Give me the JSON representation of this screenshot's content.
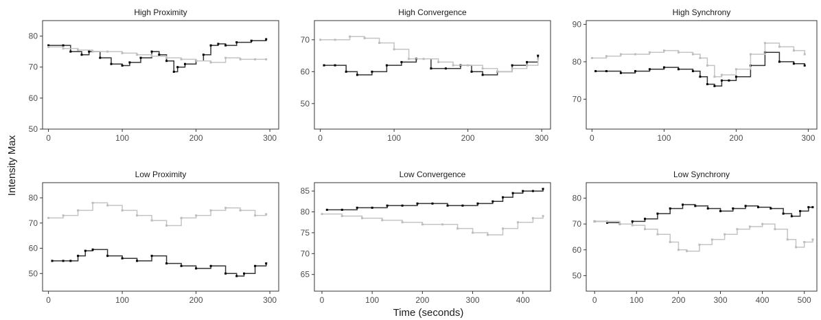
{
  "figure": {
    "y_title": "Intensity Max",
    "x_title": "Time (seconds)"
  },
  "colors": {
    "series_dark": "#000000",
    "series_light": "#bdbdbd",
    "line_dark": "#333333",
    "line_light": "#c4c4c4"
  },
  "chart_data": [
    {
      "type": "line",
      "title": "High Proximity",
      "xlim": [
        -8,
        312
      ],
      "ylim": [
        50,
        85
      ],
      "xticks": [
        0,
        100,
        200,
        300
      ],
      "yticks": [
        50,
        60,
        70,
        80
      ],
      "series": [
        {
          "color": "dark",
          "x": [
            0,
            20,
            30,
            45,
            55,
            70,
            85,
            100,
            110,
            125,
            140,
            150,
            160,
            170,
            175,
            185,
            200,
            210,
            220,
            230,
            240,
            255,
            275,
            295
          ],
          "y": [
            77,
            77,
            75,
            74,
            75,
            73,
            71,
            70.5,
            71.5,
            73,
            75,
            74,
            72,
            68.5,
            70,
            71,
            72,
            74,
            77,
            77.5,
            77,
            78,
            78.5,
            79
          ]
        },
        {
          "color": "light",
          "x": [
            0,
            20,
            40,
            60,
            80,
            100,
            120,
            140,
            160,
            180,
            200,
            220,
            240,
            260,
            280,
            295
          ],
          "y": [
            76.5,
            76,
            75.5,
            75,
            75,
            74.5,
            74,
            73.5,
            73,
            72.5,
            72,
            71.5,
            73,
            72.5,
            72.5,
            72.5
          ]
        }
      ]
    },
    {
      "type": "line",
      "title": "High Convergence",
      "xlim": [
        -8,
        312
      ],
      "ylim": [
        42,
        76
      ],
      "xticks": [
        0,
        100,
        200,
        300
      ],
      "yticks": [
        50,
        60,
        70
      ],
      "series": [
        {
          "color": "dark",
          "x": [
            5,
            20,
            35,
            50,
            70,
            90,
            110,
            130,
            150,
            170,
            190,
            205,
            220,
            240,
            260,
            280,
            295
          ],
          "y": [
            62,
            62,
            60,
            59,
            60,
            62,
            63,
            64,
            61,
            61,
            62,
            60,
            59,
            60,
            62,
            63,
            65
          ]
        },
        {
          "color": "light",
          "x": [
            0,
            20,
            40,
            60,
            80,
            100,
            120,
            140,
            160,
            180,
            200,
            220,
            240,
            260,
            280,
            295
          ],
          "y": [
            70,
            70,
            71,
            70.5,
            69,
            67,
            64,
            64,
            63,
            62,
            62,
            61,
            60,
            61,
            62,
            64
          ]
        }
      ]
    },
    {
      "type": "line",
      "title": "High Synchrony",
      "xlim": [
        -8,
        312
      ],
      "ylim": [
        62,
        91
      ],
      "xticks": [
        0,
        100,
        200,
        300
      ],
      "yticks": [
        70,
        80,
        90
      ],
      "series": [
        {
          "color": "dark",
          "x": [
            5,
            20,
            40,
            60,
            80,
            100,
            120,
            140,
            150,
            160,
            170,
            180,
            190,
            200,
            220,
            240,
            260,
            280,
            295
          ],
          "y": [
            77.5,
            77.5,
            77,
            77.5,
            78,
            78.5,
            78,
            77.5,
            76,
            74,
            73.5,
            75,
            75,
            76,
            79,
            82.5,
            80,
            79.5,
            79
          ]
        },
        {
          "color": "light",
          "x": [
            0,
            20,
            40,
            60,
            80,
            100,
            120,
            140,
            150,
            160,
            170,
            180,
            200,
            220,
            240,
            260,
            280,
            295
          ],
          "y": [
            81,
            81.5,
            82,
            82,
            82.5,
            83,
            82.5,
            82,
            81,
            79,
            76,
            76.5,
            78,
            82,
            85,
            84,
            83,
            82
          ]
        }
      ]
    },
    {
      "type": "line",
      "title": "Low Proximity",
      "xlim": [
        -8,
        312
      ],
      "ylim": [
        43,
        86
      ],
      "xticks": [
        0,
        100,
        200,
        300
      ],
      "yticks": [
        50,
        60,
        70,
        80
      ],
      "series": [
        {
          "color": "dark",
          "x": [
            5,
            20,
            30,
            40,
            50,
            60,
            80,
            100,
            120,
            140,
            160,
            180,
            200,
            220,
            240,
            255,
            265,
            280,
            295
          ],
          "y": [
            55,
            55,
            55,
            57,
            59,
            59.5,
            57,
            56,
            55,
            57,
            54,
            53,
            52,
            53,
            50,
            49,
            50,
            53,
            54
          ]
        },
        {
          "color": "light",
          "x": [
            0,
            20,
            40,
            60,
            80,
            100,
            120,
            140,
            160,
            180,
            200,
            220,
            240,
            260,
            280,
            295
          ],
          "y": [
            72,
            73,
            75,
            78,
            77,
            75,
            73,
            71,
            69,
            72,
            73,
            75,
            76,
            75,
            73,
            73.5
          ]
        }
      ]
    },
    {
      "type": "line",
      "title": "Low Convergence",
      "xlim": [
        -15,
        455
      ],
      "ylim": [
        61,
        87
      ],
      "xticks": [
        0,
        100,
        200,
        300,
        400
      ],
      "yticks": [
        65,
        70,
        75,
        80,
        85
      ],
      "series": [
        {
          "color": "dark",
          "x": [
            10,
            40,
            70,
            100,
            130,
            160,
            190,
            220,
            250,
            280,
            310,
            340,
            360,
            380,
            400,
            420,
            440
          ],
          "y": [
            80.5,
            80.5,
            81,
            81,
            81.5,
            81.5,
            82,
            82,
            81.5,
            81.5,
            82,
            82.5,
            83.5,
            84.5,
            85,
            85,
            85.5
          ]
        },
        {
          "color": "light",
          "x": [
            0,
            40,
            80,
            120,
            160,
            200,
            240,
            270,
            300,
            330,
            360,
            390,
            420,
            440
          ],
          "y": [
            79.5,
            79,
            78.5,
            78,
            77.5,
            77,
            77,
            76,
            75,
            74.5,
            76,
            77.5,
            78.5,
            79
          ]
        }
      ]
    },
    {
      "type": "line",
      "title": "Low Synchrony",
      "xlim": [
        -20,
        530
      ],
      "ylim": [
        44,
        86
      ],
      "xticks": [
        0,
        100,
        200,
        300,
        400,
        500
      ],
      "yticks": [
        50,
        60,
        70,
        80
      ],
      "series": [
        {
          "color": "dark",
          "x": [
            0,
            30,
            60,
            90,
            120,
            150,
            180,
            210,
            240,
            270,
            300,
            330,
            360,
            390,
            420,
            450,
            470,
            490,
            510,
            520
          ],
          "y": [
            71,
            70.5,
            70,
            71,
            72,
            74,
            76,
            77.5,
            77,
            76,
            75,
            76,
            77,
            76.5,
            76,
            74,
            73,
            75,
            76.5,
            76.5
          ]
        },
        {
          "color": "light",
          "x": [
            0,
            30,
            60,
            90,
            120,
            150,
            180,
            200,
            220,
            250,
            280,
            310,
            340,
            370,
            400,
            430,
            460,
            480,
            500,
            520
          ],
          "y": [
            71,
            71,
            70,
            69.5,
            68,
            66,
            63,
            60,
            59.5,
            62,
            64,
            66,
            68,
            69,
            70,
            68,
            64,
            61,
            63,
            64
          ]
        }
      ]
    }
  ]
}
